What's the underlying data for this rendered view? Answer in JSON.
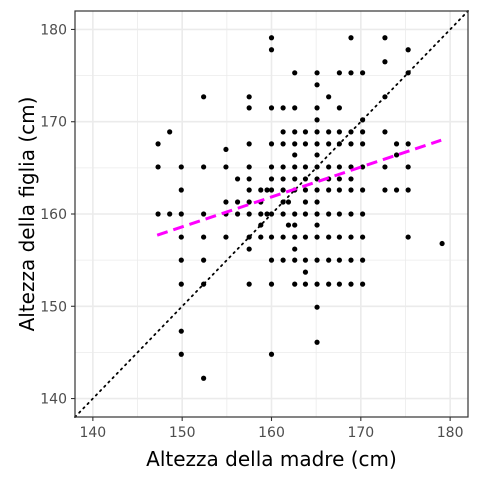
{
  "chart_data": {
    "type": "scatter",
    "title": "",
    "xlabel": "Altezza della madre (cm)",
    "ylabel": "Altezza della figlia (cm)",
    "xlim": [
      138,
      182
    ],
    "ylim": [
      138,
      182
    ],
    "xticks": [
      140,
      150,
      160,
      170,
      180
    ],
    "yticks": [
      140,
      150,
      160,
      170,
      180
    ],
    "grid": true,
    "legend": "none",
    "colors": {
      "points": "#000000",
      "trend_line": "#ff00ff",
      "identity_line": "#000000",
      "grid": "#ebebeb",
      "panel_border": "#333333"
    },
    "trend_line": {
      "style": "dashed",
      "x": [
        147.2,
        179.0
      ],
      "y": [
        157.7,
        168.0
      ]
    },
    "identity_line": {
      "style": "dotted",
      "x": [
        138,
        182
      ],
      "y": [
        138,
        182
      ]
    },
    "points": [
      [
        147.3,
        167.6
      ],
      [
        147.3,
        165.1
      ],
      [
        147.3,
        160.0
      ],
      [
        148.6,
        168.9
      ],
      [
        148.6,
        160.0
      ],
      [
        149.9,
        165.1
      ],
      [
        149.9,
        162.6
      ],
      [
        149.9,
        160.0
      ],
      [
        149.9,
        157.5
      ],
      [
        149.9,
        155.0
      ],
      [
        149.9,
        152.4
      ],
      [
        149.9,
        147.3
      ],
      [
        149.9,
        144.8
      ],
      [
        152.4,
        172.7
      ],
      [
        152.4,
        165.1
      ],
      [
        152.4,
        160.0
      ],
      [
        152.4,
        157.5
      ],
      [
        152.4,
        155.0
      ],
      [
        152.4,
        152.4
      ],
      [
        152.4,
        142.2
      ],
      [
        154.9,
        167.0
      ],
      [
        154.9,
        165.1
      ],
      [
        154.9,
        161.3
      ],
      [
        154.9,
        160.0
      ],
      [
        154.9,
        157.5
      ],
      [
        156.2,
        163.8
      ],
      [
        156.2,
        161.3
      ],
      [
        156.2,
        160.0
      ],
      [
        157.5,
        172.7
      ],
      [
        157.5,
        171.5
      ],
      [
        157.5,
        167.6
      ],
      [
        157.5,
        165.1
      ],
      [
        157.5,
        163.8
      ],
      [
        157.5,
        162.6
      ],
      [
        157.5,
        161.3
      ],
      [
        157.5,
        160.0
      ],
      [
        157.5,
        157.5
      ],
      [
        157.5,
        156.2
      ],
      [
        157.5,
        152.4
      ],
      [
        158.8,
        162.6
      ],
      [
        158.8,
        161.3
      ],
      [
        158.8,
        160.0
      ],
      [
        158.8,
        158.8
      ],
      [
        158.8,
        157.5
      ],
      [
        159.5,
        162.6
      ],
      [
        159.5,
        160.0
      ],
      [
        160.0,
        179.1
      ],
      [
        160.0,
        177.8
      ],
      [
        160.0,
        171.5
      ],
      [
        160.0,
        167.6
      ],
      [
        160.0,
        165.1
      ],
      [
        160.0,
        163.8
      ],
      [
        160.0,
        162.6
      ],
      [
        160.0,
        160.0
      ],
      [
        160.0,
        157.5
      ],
      [
        160.0,
        155.0
      ],
      [
        160.0,
        152.4
      ],
      [
        160.0,
        144.8
      ],
      [
        161.3,
        171.5
      ],
      [
        161.3,
        168.9
      ],
      [
        161.3,
        167.6
      ],
      [
        161.3,
        165.1
      ],
      [
        161.3,
        163.8
      ],
      [
        161.3,
        162.6
      ],
      [
        161.3,
        161.3
      ],
      [
        161.3,
        160.0
      ],
      [
        161.3,
        157.5
      ],
      [
        161.3,
        155.0
      ],
      [
        161.9,
        161.3
      ],
      [
        161.9,
        158.8
      ],
      [
        162.6,
        175.3
      ],
      [
        162.6,
        171.5
      ],
      [
        162.6,
        168.9
      ],
      [
        162.6,
        167.6
      ],
      [
        162.6,
        166.4
      ],
      [
        162.6,
        165.1
      ],
      [
        162.6,
        163.8
      ],
      [
        162.6,
        162.6
      ],
      [
        162.6,
        160.0
      ],
      [
        162.6,
        158.8
      ],
      [
        162.6,
        157.5
      ],
      [
        162.6,
        156.2
      ],
      [
        162.6,
        155.0
      ],
      [
        162.6,
        152.4
      ],
      [
        163.8,
        168.9
      ],
      [
        163.8,
        167.6
      ],
      [
        163.8,
        165.1
      ],
      [
        163.8,
        163.8
      ],
      [
        163.8,
        162.6
      ],
      [
        163.8,
        161.3
      ],
      [
        163.8,
        160.0
      ],
      [
        163.8,
        157.5
      ],
      [
        163.8,
        155.0
      ],
      [
        163.8,
        153.7
      ],
      [
        163.8,
        152.4
      ],
      [
        165.1,
        175.3
      ],
      [
        165.1,
        174.0
      ],
      [
        165.1,
        171.5
      ],
      [
        165.1,
        170.2
      ],
      [
        165.1,
        168.9
      ],
      [
        165.1,
        167.6
      ],
      [
        165.1,
        166.4
      ],
      [
        165.1,
        165.1
      ],
      [
        165.1,
        163.8
      ],
      [
        165.1,
        162.6
      ],
      [
        165.1,
        161.3
      ],
      [
        165.1,
        160.0
      ],
      [
        165.1,
        158.8
      ],
      [
        165.1,
        157.5
      ],
      [
        165.1,
        155.0
      ],
      [
        165.1,
        152.4
      ],
      [
        165.1,
        149.9
      ],
      [
        165.1,
        146.1
      ],
      [
        166.4,
        172.7
      ],
      [
        166.4,
        168.9
      ],
      [
        166.4,
        167.6
      ],
      [
        166.4,
        165.1
      ],
      [
        166.4,
        163.8
      ],
      [
        166.4,
        162.6
      ],
      [
        166.4,
        160.0
      ],
      [
        166.4,
        157.5
      ],
      [
        166.4,
        155.0
      ],
      [
        166.4,
        152.4
      ],
      [
        167.6,
        175.3
      ],
      [
        167.6,
        171.5
      ],
      [
        167.6,
        168.9
      ],
      [
        167.6,
        167.6
      ],
      [
        167.6,
        165.1
      ],
      [
        167.6,
        163.8
      ],
      [
        167.6,
        162.6
      ],
      [
        167.6,
        160.0
      ],
      [
        167.6,
        157.5
      ],
      [
        167.6,
        155.0
      ],
      [
        167.6,
        152.4
      ],
      [
        168.9,
        179.1
      ],
      [
        168.9,
        175.3
      ],
      [
        168.9,
        168.9
      ],
      [
        168.9,
        167.6
      ],
      [
        168.9,
        165.1
      ],
      [
        168.9,
        163.8
      ],
      [
        168.9,
        162.6
      ],
      [
        168.9,
        160.0
      ],
      [
        168.9,
        157.5
      ],
      [
        168.9,
        155.0
      ],
      [
        168.9,
        152.4
      ],
      [
        170.2,
        175.3
      ],
      [
        170.2,
        170.2
      ],
      [
        170.2,
        168.9
      ],
      [
        170.2,
        167.6
      ],
      [
        170.2,
        165.1
      ],
      [
        170.2,
        162.6
      ],
      [
        170.2,
        160.0
      ],
      [
        170.2,
        157.5
      ],
      [
        170.2,
        155.0
      ],
      [
        170.2,
        152.4
      ],
      [
        172.7,
        179.1
      ],
      [
        172.7,
        176.5
      ],
      [
        172.7,
        172.7
      ],
      [
        172.7,
        168.9
      ],
      [
        172.7,
        165.1
      ],
      [
        172.7,
        162.6
      ],
      [
        174.0,
        167.6
      ],
      [
        174.0,
        166.4
      ],
      [
        174.0,
        162.6
      ],
      [
        175.3,
        177.8
      ],
      [
        175.3,
        175.3
      ],
      [
        175.3,
        167.6
      ],
      [
        175.3,
        165.1
      ],
      [
        175.3,
        162.6
      ],
      [
        175.3,
        157.5
      ],
      [
        179.1,
        156.8
      ]
    ]
  }
}
